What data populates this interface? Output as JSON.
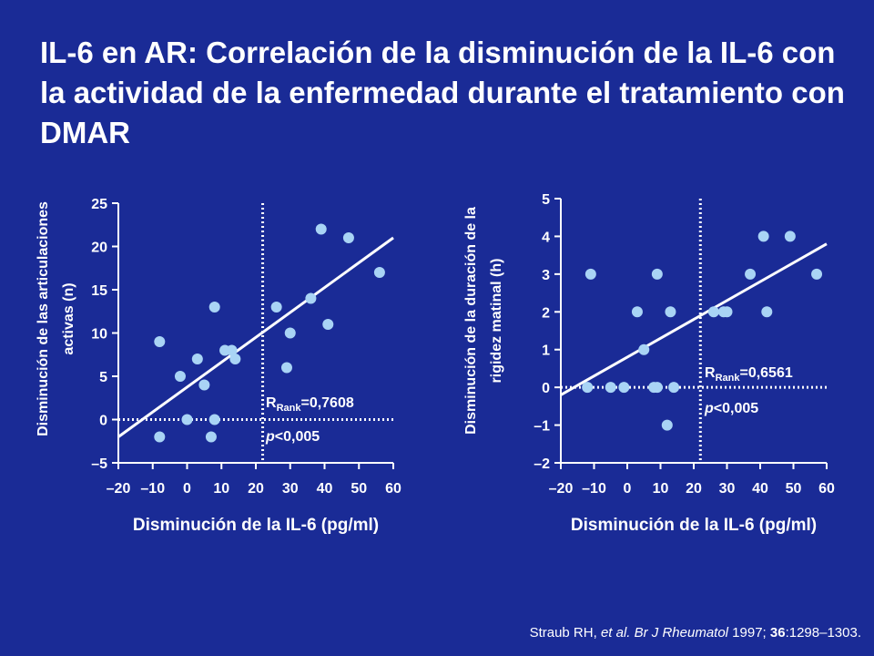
{
  "slide": {
    "title": "IL-6 en AR: Correlación de la disminución de la IL-6 con la actividad de la enfermedad durante el tratamiento con DMAR",
    "citation": {
      "authors": "Straub RH, ",
      "etal": "et al.",
      "journal": " Br J Rheumatol",
      "year": " 1997; ",
      "volume": "36",
      "pages": ":1298–1303."
    }
  },
  "colors": {
    "background": "#1a2b96",
    "point": "#a9d4f5",
    "line": "#ffffff",
    "reference_line": "#ffffff"
  },
  "chart_data": [
    {
      "type": "scatter",
      "title": "",
      "xlabel": "Disminución de la IL-6 (pg/ml)",
      "ylabel_lines": [
        "Disminución de las articulaciones",
        "activas (n)"
      ],
      "xlim": [
        -20,
        60
      ],
      "ylim": [
        -5,
        25
      ],
      "xticks": [
        -20,
        -10,
        0,
        10,
        20,
        30,
        40,
        50,
        60
      ],
      "xtick_labels": [
        "–20",
        "–10",
        "0",
        "10",
        "20",
        "30",
        "40",
        "50",
        "60"
      ],
      "yticks": [
        -5,
        0,
        5,
        10,
        15,
        20,
        25
      ],
      "ytick_labels": [
        "–5",
        "0",
        "5",
        "10",
        "15",
        "20",
        "25"
      ],
      "grid": false,
      "reference_lines": {
        "x": 22,
        "y": 0
      },
      "regression_line": {
        "x": [
          -20,
          60
        ],
        "y": [
          -2,
          21
        ]
      },
      "stat_r_prefix": "R",
      "stat_r_subscript": "Rank",
      "stat_r_value": "=0,7608",
      "stat_p_italic": "p",
      "stat_p_value": "<0,005",
      "points": [
        {
          "x": -8,
          "y": 9
        },
        {
          "x": -8,
          "y": -2
        },
        {
          "x": -2,
          "y": 5
        },
        {
          "x": 0,
          "y": 0
        },
        {
          "x": 3,
          "y": 7
        },
        {
          "x": 5,
          "y": 4
        },
        {
          "x": 7,
          "y": -2
        },
        {
          "x": 8,
          "y": 0
        },
        {
          "x": 8,
          "y": 13
        },
        {
          "x": 11,
          "y": 8
        },
        {
          "x": 13,
          "y": 8
        },
        {
          "x": 14,
          "y": 7
        },
        {
          "x": 26,
          "y": 13
        },
        {
          "x": 29,
          "y": 6
        },
        {
          "x": 30,
          "y": 10
        },
        {
          "x": 36,
          "y": 14
        },
        {
          "x": 39,
          "y": 22
        },
        {
          "x": 41,
          "y": 11
        },
        {
          "x": 47,
          "y": 21
        },
        {
          "x": 56,
          "y": 17
        }
      ]
    },
    {
      "type": "scatter",
      "title": "",
      "xlabel": "Disminución de la IL-6 (pg/ml)",
      "ylabel_lines": [
        "Disminución de la duración de la",
        "rigidez matinal (h)"
      ],
      "xlim": [
        -20,
        60
      ],
      "ylim": [
        -2,
        5
      ],
      "xticks": [
        -20,
        -10,
        0,
        10,
        20,
        30,
        40,
        50,
        60
      ],
      "xtick_labels": [
        "–20",
        "–10",
        "0",
        "10",
        "20",
        "30",
        "40",
        "50",
        "60"
      ],
      "yticks": [
        -2,
        -1,
        0,
        1,
        2,
        3,
        4,
        5
      ],
      "ytick_labels": [
        "–2",
        "–1",
        "0",
        "1",
        "2",
        "3",
        "4",
        "5"
      ],
      "grid": false,
      "reference_lines": {
        "x": 22,
        "y": 0
      },
      "regression_line": {
        "x": [
          -20,
          60
        ],
        "y": [
          -0.2,
          3.8
        ]
      },
      "stat_r_prefix": "R",
      "stat_r_subscript": "Rank",
      "stat_r_value": "=0,6561",
      "stat_p_italic": "p",
      "stat_p_value": "<0,005",
      "points": [
        {
          "x": -12,
          "y": 0
        },
        {
          "x": -11,
          "y": 3
        },
        {
          "x": -5,
          "y": 0
        },
        {
          "x": -1,
          "y": 0
        },
        {
          "x": 3,
          "y": 2
        },
        {
          "x": 5,
          "y": 1
        },
        {
          "x": 8,
          "y": 0
        },
        {
          "x": 9,
          "y": 0
        },
        {
          "x": 9,
          "y": 3
        },
        {
          "x": 12,
          "y": -1
        },
        {
          "x": 13,
          "y": 2
        },
        {
          "x": 14,
          "y": 0
        },
        {
          "x": 26,
          "y": 2
        },
        {
          "x": 29,
          "y": 2
        },
        {
          "x": 30,
          "y": 2
        },
        {
          "x": 37,
          "y": 3
        },
        {
          "x": 41,
          "y": 4
        },
        {
          "x": 42,
          "y": 2
        },
        {
          "x": 49,
          "y": 4
        },
        {
          "x": 57,
          "y": 3
        }
      ]
    }
  ]
}
